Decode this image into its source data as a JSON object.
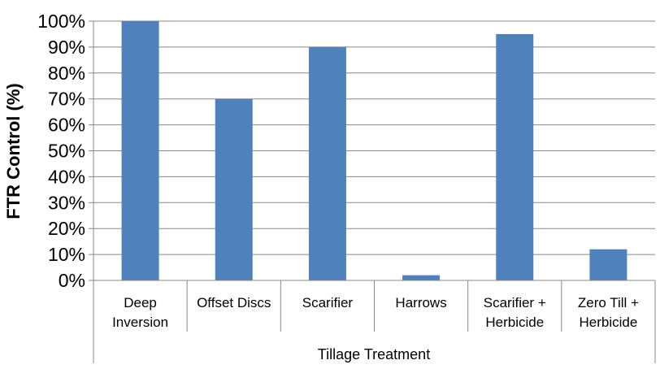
{
  "chart_data": {
    "type": "bar",
    "categories": [
      [
        "Deep",
        "Inversion"
      ],
      [
        "Offset Discs"
      ],
      [
        "Scarifier"
      ],
      [
        "Harrows"
      ],
      [
        "Scarifier +",
        "Herbicide"
      ],
      [
        "Zero Till +",
        "Herbicide"
      ]
    ],
    "values": [
      100,
      70,
      90,
      2,
      95,
      12
    ],
    "ylabel": "FTR Control (%)",
    "xlabel": "Tillage Treatment",
    "ylim": [
      0,
      100
    ],
    "yticks": [
      "0%",
      "10%",
      "20%",
      "30%",
      "40%",
      "50%",
      "60%",
      "70%",
      "80%",
      "90%",
      "100%"
    ],
    "grid": true,
    "bar_color": "#4f81bd"
  }
}
